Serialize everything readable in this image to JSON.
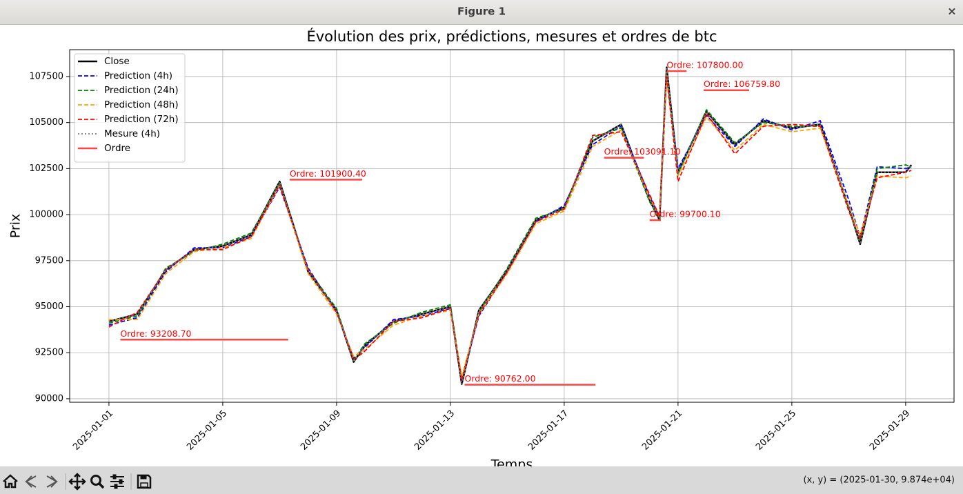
{
  "window": {
    "title": "Figure 1",
    "close": "×",
    "status": "(x, y) = (2025-01-30, 9.874e+04)"
  },
  "chart_data": {
    "type": "line",
    "title": "Évolution des prix, prédictions, mesures et ordres de btc",
    "xlabel": "Temps",
    "ylabel": "Prix",
    "x": [
      20089,
      20090,
      20091,
      20092,
      20093,
      20094,
      20095,
      20096,
      20097,
      20097.6,
      20098,
      20099,
      20100,
      20101,
      20101.4,
      20102,
      20103,
      20104,
      20105,
      20106,
      20107,
      20108,
      20108.35,
      20108.6,
      20109,
      20110,
      20111,
      20112,
      20113,
      20114,
      20115,
      20115.4,
      20116,
      20117,
      20117.2
    ],
    "xlim": [
      20087.62,
      20118.7
    ],
    "xticks": [
      {
        "value": 20089,
        "label": "2025-01-01"
      },
      {
        "value": 20093,
        "label": "2025-01-05"
      },
      {
        "value": 20097,
        "label": "2025-01-09"
      },
      {
        "value": 20101,
        "label": "2025-01-13"
      },
      {
        "value": 20105,
        "label": "2025-01-17"
      },
      {
        "value": 20109,
        "label": "2025-01-21"
      },
      {
        "value": 20113,
        "label": "2025-01-25"
      },
      {
        "value": 20117,
        "label": "2025-01-29"
      }
    ],
    "ylim": [
      89810,
      108960
    ],
    "yticks": [
      90000,
      92500,
      95000,
      97500,
      100000,
      102500,
      105000,
      107500
    ],
    "grid": true,
    "legend": "upper left",
    "series": [
      {
        "name": "Close",
        "color": "#000000",
        "linestyle": "solid",
        "width": 2.5,
        "values": [
          94200,
          94600,
          97000,
          98100,
          98300,
          98900,
          101800,
          96900,
          94800,
          92000,
          92900,
          94200,
          94600,
          95000,
          90800,
          94800,
          97000,
          99700,
          100400,
          104000,
          104900,
          100800,
          99700,
          108000,
          102300,
          105600,
          103800,
          105100,
          104700,
          104900,
          100400,
          98400,
          102300,
          102300,
          102700
        ]
      },
      {
        "name": "Prediction (4h)",
        "color": "#0000ff",
        "linestyle": "dashed",
        "width": 1.8,
        "values": [
          94000,
          94400,
          96900,
          98200,
          98200,
          98800,
          101500,
          97100,
          94700,
          92200,
          92800,
          94300,
          94500,
          94900,
          91000,
          94500,
          96900,
          99600,
          100500,
          103800,
          104800,
          101000,
          99900,
          107500,
          102500,
          105400,
          103700,
          105200,
          104600,
          105100,
          100800,
          98800,
          102600,
          102500,
          102600
        ]
      },
      {
        "name": "Prediction (24h)",
        "color": "#008000",
        "linestyle": "dashed",
        "width": 1.8,
        "values": [
          94100,
          94500,
          97100,
          98000,
          98400,
          99000,
          101700,
          97000,
          94900,
          92100,
          93000,
          94100,
          94700,
          95100,
          91100,
          94700,
          97100,
          99800,
          100300,
          104200,
          104700,
          100700,
          99800,
          107700,
          102200,
          105700,
          103900,
          105000,
          104800,
          104800,
          100300,
          98600,
          102500,
          102700,
          102600
        ]
      },
      {
        "name": "Prediction (48h)",
        "color": "#ffa500",
        "linestyle": "dashed",
        "width": 1.8,
        "values": [
          94300,
          94300,
          96800,
          98000,
          98200,
          98700,
          101600,
          96800,
          94600,
          92300,
          92700,
          94000,
          94500,
          94800,
          91200,
          94600,
          96800,
          99500,
          100200,
          103700,
          104600,
          100900,
          100000,
          107400,
          102100,
          105300,
          103500,
          104900,
          104500,
          104700,
          100500,
          98900,
          102100,
          102000,
          102100
        ]
      },
      {
        "name": "Prediction (72h)",
        "color": "#ff0000",
        "linestyle": "dashed",
        "width": 1.8,
        "values": [
          93900,
          94700,
          97000,
          98100,
          98100,
          98800,
          101600,
          97000,
          94700,
          92100,
          92600,
          94200,
          94400,
          94900,
          91000,
          94600,
          96900,
          99600,
          100300,
          104300,
          104500,
          101100,
          99900,
          107600,
          101800,
          105500,
          103300,
          104800,
          104900,
          104800,
          100200,
          98700,
          102000,
          102300,
          102400
        ]
      },
      {
        "name": "Mesure (4h)",
        "color": "#808080",
        "linestyle": "dotted",
        "width": 1.8,
        "values": [
          94200,
          94600,
          97000,
          98100,
          98300,
          98900,
          101800,
          96900,
          94800,
          92000,
          92900,
          94200,
          94600,
          95000,
          90800,
          94800,
          97000,
          99700,
          100400,
          104000,
          104900,
          100800,
          99700,
          108000,
          102300,
          105600,
          103800,
          105100,
          104700,
          104900,
          100400,
          98400,
          102300,
          102300,
          102700
        ]
      }
    ],
    "orders": {
      "name": "Ordre",
      "color": "#ff4444",
      "label_color": "#ff0000",
      "items": [
        {
          "x": [
            20089.4,
            20095.3
          ],
          "value": 93208.7,
          "label": "Ordre: 93208.70"
        },
        {
          "x": [
            20095.35,
            20097.9
          ],
          "value": 101900.4,
          "label": "Ordre: 101900.40"
        },
        {
          "x": [
            20101.5,
            20106.1
          ],
          "value": 90762.0,
          "label": "Ordre: 90762.00"
        },
        {
          "x": [
            20106.4,
            20107.8
          ],
          "value": 103091.1,
          "label": "Ordre: 103091.10"
        },
        {
          "x": [
            20108.0,
            20108.4
          ],
          "value": 99700.1,
          "label": "Ordre: 99700.10"
        },
        {
          "x": [
            20108.6,
            20109.3
          ],
          "value": 107800.0,
          "label": "Ordre: 107800.00"
        },
        {
          "x": [
            20109.9,
            20111.5
          ],
          "value": 106759.8,
          "label": "Ordre: 106759.80"
        }
      ]
    }
  }
}
